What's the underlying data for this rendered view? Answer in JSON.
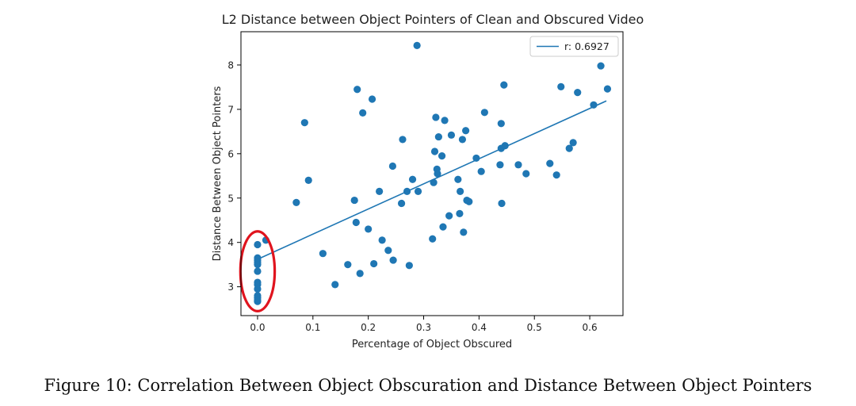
{
  "figure": {
    "caption": "Figure 10: Correlation Between Object Obscuration and Distance Between Object Pointers"
  },
  "chart_data": {
    "type": "scatter",
    "title": "L2 Distance between Object Pointers of Clean and Obscured Video",
    "xlabel": "Percentage of Object Obscured",
    "ylabel": "Distance Between Object Pointers",
    "xlim": [
      -0.03,
      0.66
    ],
    "ylim": [
      2.35,
      8.75
    ],
    "xticks": [
      0.0,
      0.1,
      0.2,
      0.3,
      0.4,
      0.5,
      0.6
    ],
    "xtick_labels": [
      "0.0",
      "0.1",
      "0.2",
      "0.3",
      "0.4",
      "0.5",
      "0.6"
    ],
    "yticks": [
      3,
      4,
      5,
      6,
      7,
      8
    ],
    "ytick_labels": [
      "3",
      "4",
      "5",
      "6",
      "7",
      "8"
    ],
    "grid": false,
    "legend": {
      "placement": "top-right",
      "entries": [
        "r: 0.6927"
      ]
    },
    "colors": {
      "points": "#1f77b4",
      "fit_line": "#1f77b4",
      "highlight": "#e0141e"
    },
    "fit_line": {
      "label": "r: 0.6927",
      "x": [
        0.0,
        0.63
      ],
      "y": [
        3.62,
        7.19
      ]
    },
    "annotation": {
      "type": "ellipse",
      "description": "red ellipse around x = 0.0 cluster",
      "center": [
        0.0,
        3.35
      ],
      "x_radius": 0.031,
      "y_radius": 0.9
    },
    "series": [
      {
        "x": [
          0.0,
          0.0,
          0.0,
          0.0,
          0.0,
          0.0,
          0.0,
          0.0,
          0.0,
          0.0,
          0.0,
          0.0,
          0.0,
          0.015,
          0.07,
          0.085,
          0.092,
          0.118,
          0.14,
          0.163,
          0.175,
          0.178,
          0.18,
          0.185,
          0.19,
          0.2,
          0.207,
          0.21,
          0.22,
          0.225,
          0.236,
          0.244,
          0.245,
          0.26,
          0.262,
          0.27,
          0.274,
          0.28,
          0.29,
          0.288,
          0.316,
          0.318,
          0.32,
          0.322,
          0.324,
          0.325,
          0.327,
          0.333,
          0.335,
          0.338,
          0.346,
          0.35,
          0.362,
          0.365,
          0.366,
          0.37,
          0.372,
          0.376,
          0.378,
          0.382,
          0.395,
          0.404,
          0.41,
          0.438,
          0.44,
          0.44,
          0.441,
          0.445,
          0.447,
          0.471,
          0.485,
          0.528,
          0.54,
          0.548,
          0.563,
          0.57,
          0.578,
          0.607,
          0.62,
          0.632
        ],
        "y": [
          3.95,
          3.65,
          3.6,
          3.55,
          3.5,
          3.35,
          3.1,
          3.05,
          2.95,
          2.8,
          2.75,
          2.7,
          2.67,
          4.05,
          4.9,
          6.7,
          5.4,
          3.75,
          3.05,
          3.5,
          4.95,
          4.45,
          7.45,
          3.3,
          6.92,
          4.3,
          7.23,
          3.52,
          5.15,
          4.05,
          3.82,
          5.72,
          3.6,
          4.88,
          6.32,
          5.15,
          3.48,
          5.42,
          5.15,
          8.44,
          4.08,
          5.35,
          6.05,
          6.82,
          5.65,
          5.55,
          6.38,
          5.95,
          4.35,
          6.75,
          4.6,
          6.42,
          5.42,
          4.65,
          5.15,
          6.32,
          4.23,
          6.52,
          4.95,
          4.92,
          5.9,
          5.6,
          6.93,
          5.75,
          6.12,
          6.68,
          4.88,
          7.55,
          6.18,
          5.75,
          5.55,
          5.78,
          5.52,
          7.51,
          6.12,
          6.25,
          7.38,
          7.1,
          7.98,
          7.46
        ]
      }
    ]
  }
}
